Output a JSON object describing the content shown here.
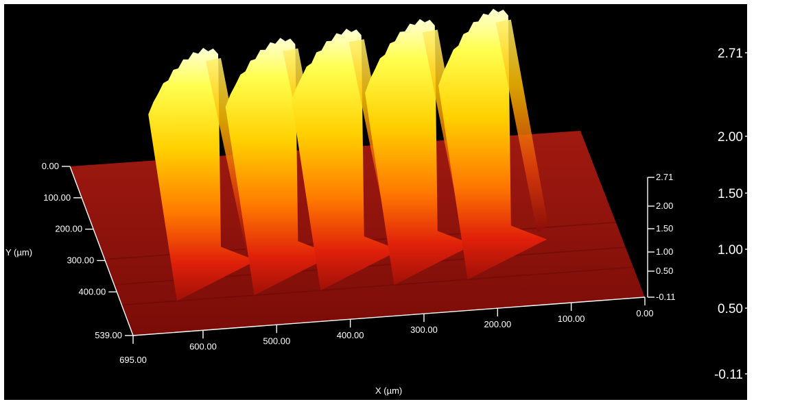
{
  "chart_data": {
    "type": "surface3d",
    "title": "",
    "xlabel": "X (µm)",
    "ylabel": "Y (µm)",
    "zlabel": "",
    "x_ticks": [
      "695.00",
      "600.00",
      "500.00",
      "400.00",
      "300.00",
      "200.00",
      "100.00",
      "0.00"
    ],
    "y_ticks": [
      "0.00",
      "100.00",
      "200.00",
      "300.00",
      "400.00",
      "539.00"
    ],
    "z_ticks": [
      "2.71",
      "2.00",
      "1.50",
      "1.00",
      "0.50",
      "-0.11"
    ],
    "colorbar_ticks": [
      "2.71",
      "2.00",
      "1.50",
      "1.00",
      "0.50",
      "-0.11"
    ],
    "xlim": [
      0,
      695
    ],
    "ylim": [
      0,
      539
    ],
    "zlim": [
      -0.11,
      2.71
    ],
    "colormap": [
      "#8b0a0a",
      "#d41a0a",
      "#ff6a00",
      "#ffc000",
      "#ffff40",
      "#ffffe6"
    ],
    "ridges": [
      {
        "x_center": 535,
        "peak_height": 2.3
      },
      {
        "x_center": 430,
        "peak_height": 2.4
      },
      {
        "x_center": 340,
        "peak_height": 2.5
      },
      {
        "x_center": 240,
        "peak_height": 2.6
      },
      {
        "x_center": 140,
        "peak_height": 2.71
      }
    ]
  }
}
